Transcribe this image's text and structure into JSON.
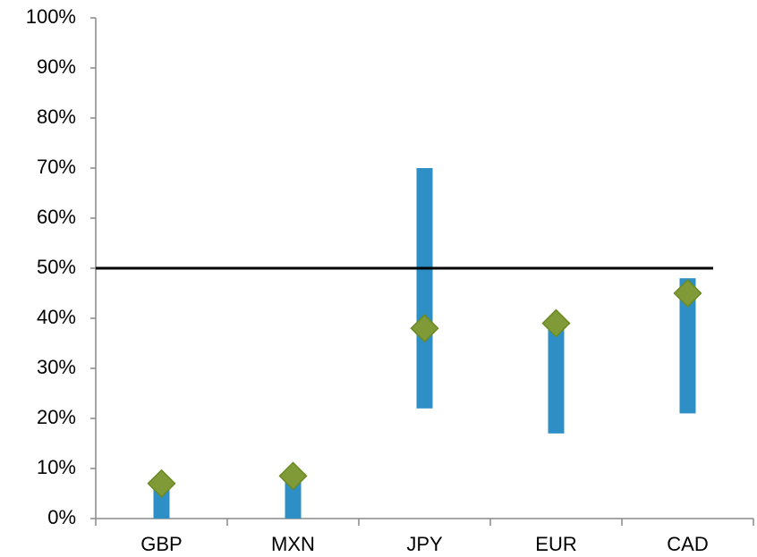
{
  "chart_data": {
    "type": "range",
    "categories": [
      "GBP",
      "MXN",
      "JPY",
      "EUR",
      "CAD"
    ],
    "lows": [
      0,
      0,
      22,
      17,
      21
    ],
    "highs": [
      7,
      8.5,
      70,
      39,
      48
    ],
    "values": [
      7,
      8.5,
      38,
      39,
      45
    ],
    "bar_color": "#2e8fc6",
    "marker_color": "#7f9a37",
    "hline": 50,
    "ylim": [
      0,
      100
    ],
    "yticks": [
      {
        "value": 0,
        "label": "0%"
      },
      {
        "value": 10,
        "label": "10%"
      },
      {
        "value": 20,
        "label": "20%"
      },
      {
        "value": 30,
        "label": "30%"
      },
      {
        "value": 40,
        "label": "40%"
      },
      {
        "value": 50,
        "label": "50%"
      },
      {
        "value": 60,
        "label": "60%"
      },
      {
        "value": 70,
        "label": "70%"
      },
      {
        "value": 80,
        "label": "80%"
      },
      {
        "value": 90,
        "label": "90%"
      },
      {
        "value": 100,
        "label": "100%"
      }
    ]
  }
}
